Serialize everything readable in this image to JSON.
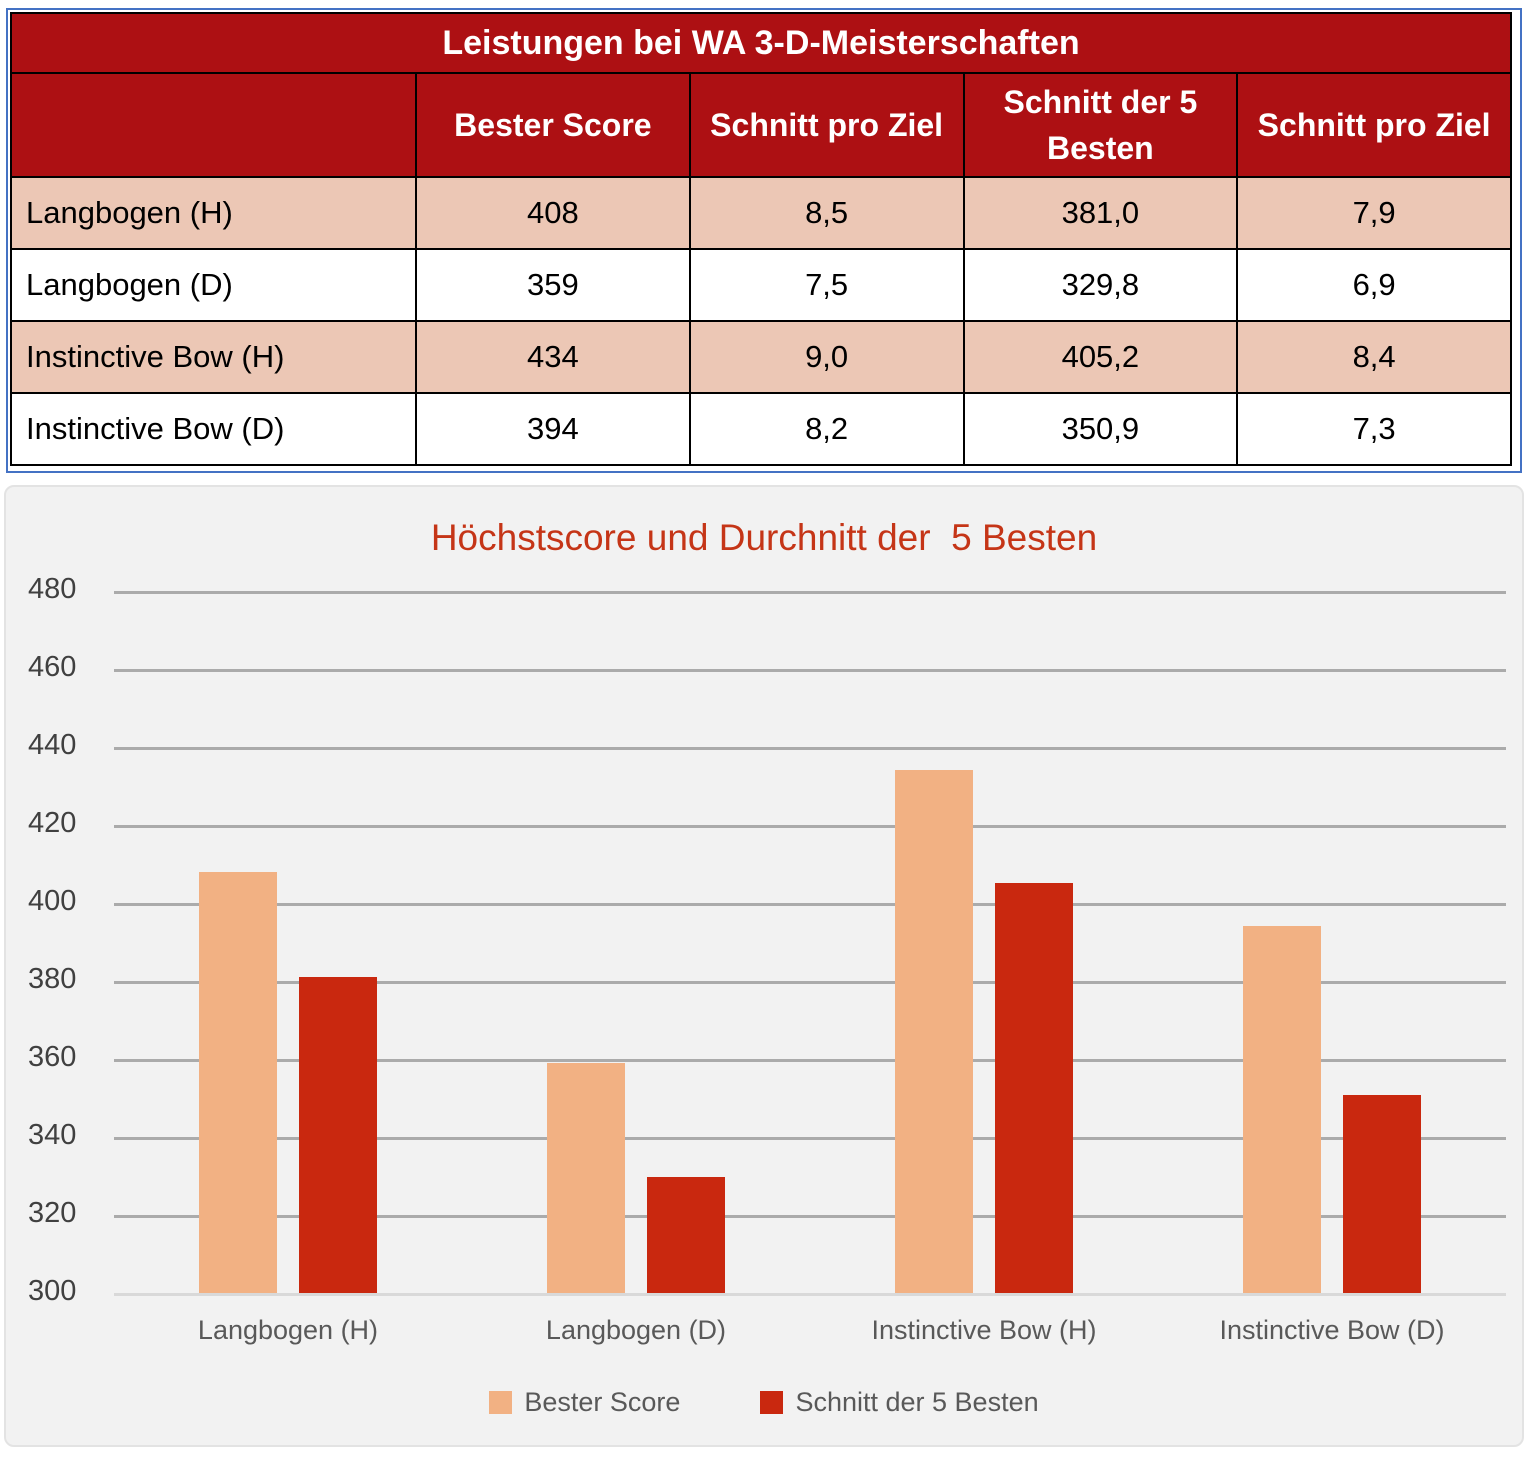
{
  "table": {
    "title": "Leistungen bei WA 3-D-Meisterschaften",
    "headers": [
      "",
      "Bester Score",
      "Schnitt pro Ziel",
      "Schnitt der 5 Besten",
      "Schnitt pro Ziel"
    ],
    "rows": [
      {
        "label": "Langbogen (H)",
        "values": [
          "408",
          "8,5",
          "381,0",
          "7,9"
        ]
      },
      {
        "label": "Langbogen (D)",
        "values": [
          "359",
          "7,5",
          "329,8",
          "6,9"
        ]
      },
      {
        "label": "Instinctive Bow (H)",
        "values": [
          "434",
          "9,0",
          "405,2",
          "8,4"
        ]
      },
      {
        "label": "Instinctive Bow (D)",
        "values": [
          "394",
          "8,2",
          "350,9",
          "7,3"
        ]
      }
    ],
    "colors": {
      "header_bg": "#AD1013",
      "header_text": "#FFFFFF",
      "row_alt_bg": "#ECC7B5",
      "row_bg": "#FFFFFF",
      "frame_border": "#4472C4",
      "cell_border": "#000000"
    }
  },
  "chart_data": {
    "type": "bar",
    "title": "Höchstscore und Durchnitt der  5 Besten",
    "categories": [
      "Langbogen (H)",
      "Langbogen (D)",
      "Instinctive Bow (H)",
      "Instinctive Bow (D)"
    ],
    "series": [
      {
        "name": "Bester Score",
        "values": [
          408,
          359,
          434,
          394
        ],
        "color": "#F2B183"
      },
      {
        "name": "Schnitt der 5 Besten",
        "values": [
          381.0,
          329.8,
          405.2,
          350.9
        ],
        "color": "#C9280F"
      }
    ],
    "ylim": [
      300,
      480
    ],
    "yticks": [
      480,
      460,
      440,
      420,
      400,
      380,
      360,
      340,
      320,
      300
    ],
    "grid": true,
    "legend_position": "bottom",
    "title_color": "#C53517",
    "plot_bg": "#F2F2F2",
    "gridline_color": "#ABABAB"
  }
}
